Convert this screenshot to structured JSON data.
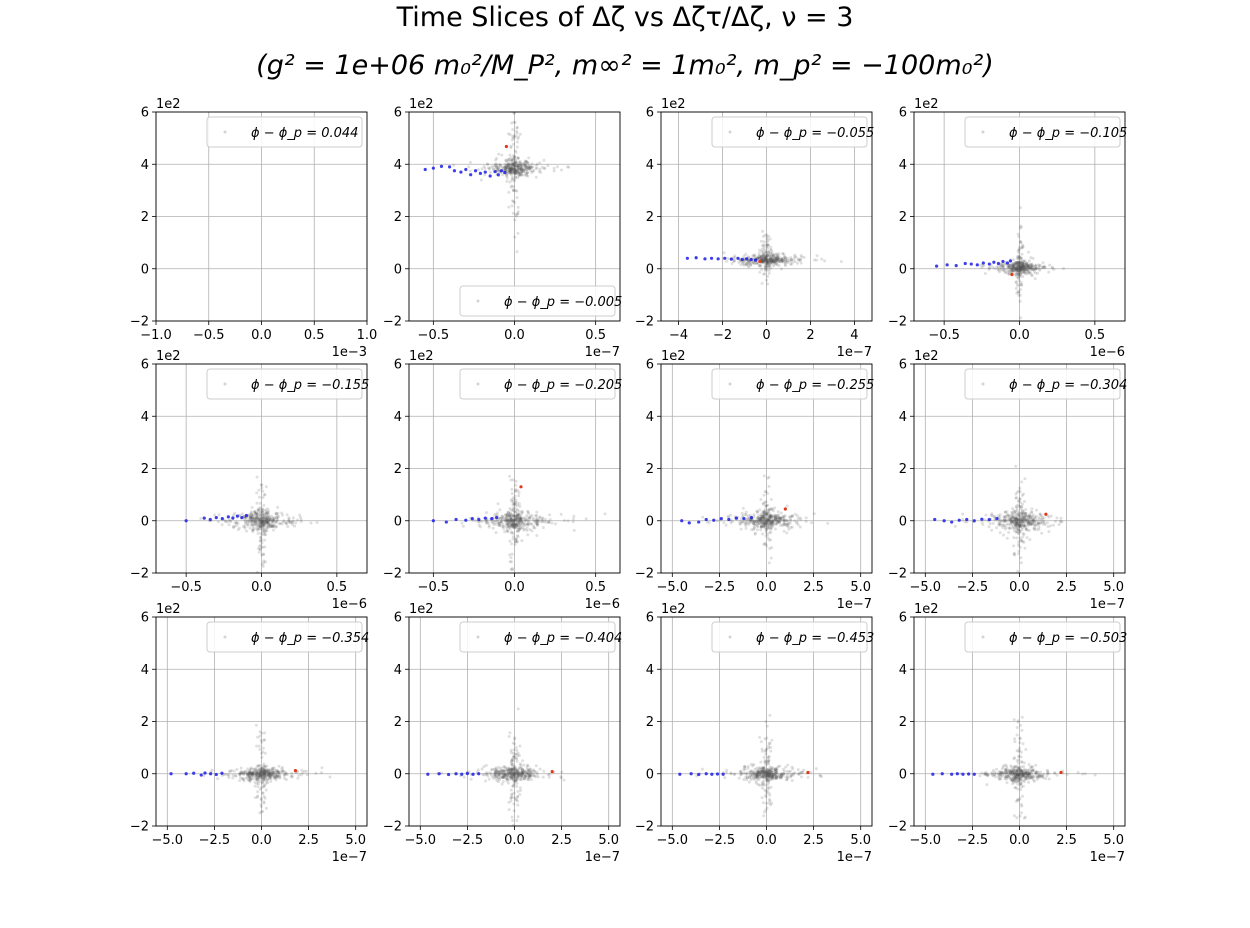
{
  "title_line1": "Time Slices of Δζ vs Δζτ/Δζ, ν = 3",
  "title_line2": "(g² = 1e+06 m₀²/M_P², m∞² = 1m₀², m_p² = −100m₀²)",
  "colors": {
    "grid": "#b0b0b0",
    "noise": "#555555",
    "blue": "#1f1fe6",
    "red": "#e03a1c",
    "legend_border": "#cccccc"
  },
  "chart_data": [
    {
      "type": "scatter",
      "legend": "ϕ − ϕ_p = 0.044",
      "legend_pos": "upper right",
      "xlim": [
        -1.0,
        1.0
      ],
      "xticks": [
        "−1.0",
        "−0.5",
        "0.0",
        "0.5",
        "1.0"
      ],
      "xticks_v": [
        -1.0,
        -0.5,
        0.0,
        0.5,
        1.0
      ],
      "xexp": "1e−3",
      "ylim": [
        -2,
        6
      ],
      "yticks": [
        "−2",
        "0",
        "2",
        "4",
        "6"
      ],
      "yticks_v": [
        -2,
        0,
        2,
        4,
        6
      ],
      "yexp": "1e2",
      "grid": true,
      "cloud": null
    },
    {
      "type": "scatter",
      "legend": "ϕ − ϕ_p = −0.005",
      "legend_pos": "lower right",
      "xlim": [
        -0.65,
        0.65
      ],
      "xticks": [
        "−0.5",
        "0.0",
        "0.5"
      ],
      "xticks_v": [
        -0.5,
        0.0,
        0.5
      ],
      "xexp": "1e−7",
      "ylim": [
        -2,
        6
      ],
      "yticks": [
        "−2",
        "0",
        "2",
        "4",
        "6"
      ],
      "yticks_v": [
        -2,
        0,
        2,
        4,
        6
      ],
      "yexp": "1e2",
      "grid": true,
      "cloud": {
        "y_center": 3.85,
        "x_spread": 0.06,
        "y_spread": 0.18,
        "y_vert": 1.3
      },
      "blue": [
        [
          -0.55,
          3.8
        ],
        [
          -0.5,
          3.85
        ],
        [
          -0.45,
          3.92
        ],
        [
          -0.4,
          3.9
        ],
        [
          -0.37,
          3.75
        ],
        [
          -0.33,
          3.7
        ],
        [
          -0.3,
          3.8
        ],
        [
          -0.27,
          3.6
        ],
        [
          -0.24,
          3.75
        ],
        [
          -0.21,
          3.65
        ],
        [
          -0.18,
          3.7
        ],
        [
          -0.15,
          3.55
        ],
        [
          -0.12,
          3.72
        ],
        [
          -0.1,
          3.6
        ],
        [
          -0.08,
          3.75
        ],
        [
          -0.06,
          3.68
        ]
      ],
      "red": [
        [
          -0.05,
          4.68
        ]
      ]
    },
    {
      "type": "scatter",
      "legend": "ϕ − ϕ_p = −0.055",
      "legend_pos": "upper right",
      "xlim": [
        -4.8,
        4.8
      ],
      "xticks": [
        "−4",
        "−2",
        "0",
        "2",
        "4"
      ],
      "xticks_v": [
        -4,
        -2,
        0,
        2,
        4
      ],
      "xexp": "1e−7",
      "ylim": [
        -2,
        6
      ],
      "yticks": [
        "−2",
        "0",
        "2",
        "4",
        "6"
      ],
      "yticks_v": [
        -2,
        0,
        2,
        4,
        6
      ],
      "yexp": "1e2",
      "grid": true,
      "cloud": {
        "y_center": 0.35,
        "x_spread": 0.5,
        "y_spread": 0.12,
        "y_vert": 0.5
      },
      "blue": [
        [
          -3.6,
          0.4
        ],
        [
          -3.2,
          0.42
        ],
        [
          -2.8,
          0.38
        ],
        [
          -2.5,
          0.4
        ],
        [
          -2.2,
          0.38
        ],
        [
          -1.9,
          0.4
        ],
        [
          -1.6,
          0.37
        ],
        [
          -1.3,
          0.4
        ],
        [
          -1.1,
          0.36
        ],
        [
          -0.9,
          0.38
        ],
        [
          -0.7,
          0.35
        ],
        [
          -0.5,
          0.33
        ]
      ],
      "red": [
        [
          -0.3,
          0.28
        ]
      ]
    },
    {
      "type": "scatter",
      "legend": "ϕ − ϕ_p = −0.105",
      "legend_pos": "upper right",
      "xlim": [
        -0.7,
        0.7
      ],
      "xticks": [
        "−0.5",
        "0.0",
        "0.5"
      ],
      "xticks_v": [
        -0.5,
        0.0,
        0.5
      ],
      "xexp": "1e−6",
      "ylim": [
        -2,
        6
      ],
      "yticks": [
        "−2",
        "0",
        "2",
        "4",
        "6"
      ],
      "yticks_v": [
        -2,
        0,
        2,
        4,
        6
      ],
      "yexp": "1e2",
      "grid": true,
      "cloud": {
        "y_center": 0.05,
        "x_spread": 0.05,
        "y_spread": 0.15,
        "y_vert": 0.6
      },
      "blue": [
        [
          -0.55,
          0.1
        ],
        [
          -0.48,
          0.15
        ],
        [
          -0.42,
          0.12
        ],
        [
          -0.36,
          0.2
        ],
        [
          -0.32,
          0.18
        ],
        [
          -0.28,
          0.15
        ],
        [
          -0.24,
          0.22
        ],
        [
          -0.2,
          0.18
        ],
        [
          -0.17,
          0.25
        ],
        [
          -0.14,
          0.2
        ],
        [
          -0.11,
          0.28
        ],
        [
          -0.08,
          0.22
        ],
        [
          -0.06,
          0.3
        ]
      ],
      "red": [
        [
          -0.05,
          -0.22
        ]
      ]
    },
    {
      "type": "scatter",
      "legend": "ϕ − ϕ_p = −0.155",
      "legend_pos": "upper right",
      "xlim": [
        -0.7,
        0.7
      ],
      "xticks": [
        "−0.5",
        "0.0",
        "0.5"
      ],
      "xticks_v": [
        -0.5,
        0.0,
        0.5
      ],
      "xexp": "1e−6",
      "ylim": [
        -2,
        6
      ],
      "yticks": [
        "−2",
        "0",
        "2",
        "4",
        "6"
      ],
      "yticks_v": [
        -2,
        0,
        2,
        4,
        6
      ],
      "yexp": "1e2",
      "grid": true,
      "cloud": {
        "y_center": 0.0,
        "x_spread": 0.07,
        "y_spread": 0.2,
        "y_vert": 0.9
      },
      "blue": [
        [
          -0.5,
          0.0
        ],
        [
          -0.38,
          0.1
        ],
        [
          -0.34,
          0.05
        ],
        [
          -0.3,
          0.12
        ],
        [
          -0.26,
          0.08
        ],
        [
          -0.22,
          0.15
        ],
        [
          -0.19,
          0.1
        ],
        [
          -0.16,
          0.18
        ],
        [
          -0.13,
          0.12
        ],
        [
          -0.1,
          0.2
        ]
      ],
      "red": []
    },
    {
      "type": "scatter",
      "legend": "ϕ − ϕ_p = −0.205",
      "legend_pos": "upper right",
      "xlim": [
        -0.65,
        0.65
      ],
      "xticks": [
        "−0.5",
        "0.0",
        "0.5"
      ],
      "xticks_v": [
        -0.5,
        0.0,
        0.5
      ],
      "xexp": "1e−6",
      "ylim": [
        -2,
        6
      ],
      "yticks": [
        "−2",
        "0",
        "2",
        "4",
        "6"
      ],
      "yticks_v": [
        -2,
        0,
        2,
        4,
        6
      ],
      "yexp": "1e2",
      "grid": true,
      "cloud": {
        "y_center": 0.0,
        "x_spread": 0.07,
        "y_spread": 0.2,
        "y_vert": 0.9
      },
      "blue": [
        [
          -0.5,
          0.0
        ],
        [
          -0.42,
          -0.05
        ],
        [
          -0.36,
          0.05
        ],
        [
          -0.3,
          0.02
        ],
        [
          -0.26,
          0.08
        ],
        [
          -0.22,
          0.05
        ],
        [
          -0.18,
          0.1
        ],
        [
          -0.14,
          0.08
        ],
        [
          -0.11,
          0.12
        ]
      ],
      "red": [
        [
          0.04,
          1.3
        ]
      ]
    },
    {
      "type": "scatter",
      "legend": "ϕ − ϕ_p = −0.255",
      "legend_pos": "upper right",
      "xlim": [
        -5.6,
        5.6
      ],
      "xticks": [
        "−5.0",
        "−2.5",
        "0.0",
        "2.5",
        "5.0"
      ],
      "xticks_v": [
        -5.0,
        -2.5,
        0.0,
        2.5,
        5.0
      ],
      "xexp": "1e−7",
      "ylim": [
        -2,
        6
      ],
      "yticks": [
        "−2",
        "0",
        "2",
        "4",
        "6"
      ],
      "yticks_v": [
        -2,
        0,
        2,
        4,
        6
      ],
      "yexp": "1e2",
      "grid": true,
      "cloud": {
        "y_center": 0.0,
        "x_spread": 0.6,
        "y_spread": 0.2,
        "y_vert": 0.9
      },
      "blue": [
        [
          -4.5,
          0.0
        ],
        [
          -4.1,
          -0.08
        ],
        [
          -3.6,
          -0.05
        ],
        [
          -3.2,
          0.05
        ],
        [
          -2.8,
          0.02
        ],
        [
          -2.4,
          0.08
        ],
        [
          -2.0,
          0.05
        ],
        [
          -1.6,
          0.1
        ],
        [
          -1.2,
          0.08
        ],
        [
          -0.8,
          0.12
        ]
      ],
      "red": [
        [
          1.0,
          0.45
        ]
      ]
    },
    {
      "type": "scatter",
      "legend": "ϕ − ϕ_p = −0.304",
      "legend_pos": "upper right",
      "xlim": [
        -5.6,
        5.6
      ],
      "xticks": [
        "−5.0",
        "−2.5",
        "0.0",
        "2.5",
        "5.0"
      ],
      "xticks_v": [
        -5.0,
        -2.5,
        0.0,
        2.5,
        5.0
      ],
      "xexp": "1e−7",
      "ylim": [
        -2,
        6
      ],
      "yticks": [
        "−2",
        "0",
        "2",
        "4",
        "6"
      ],
      "yticks_v": [
        -2,
        0,
        2,
        4,
        6
      ],
      "yexp": "1e2",
      "grid": true,
      "cloud": {
        "y_center": 0.0,
        "x_spread": 0.6,
        "y_spread": 0.2,
        "y_vert": 0.9
      },
      "blue": [
        [
          -4.5,
          0.05
        ],
        [
          -4.0,
          0.0
        ],
        [
          -3.6,
          -0.05
        ],
        [
          -3.2,
          0.02
        ],
        [
          -2.8,
          0.05
        ],
        [
          -2.4,
          0.0
        ],
        [
          -2.0,
          0.06
        ],
        [
          -1.6,
          0.05
        ],
        [
          -1.2,
          0.08
        ]
      ],
      "red": [
        [
          1.4,
          0.25
        ]
      ]
    },
    {
      "type": "scatter",
      "legend": "ϕ − ϕ_p = −0.354",
      "legend_pos": "upper right",
      "xlim": [
        -5.6,
        5.6
      ],
      "xticks": [
        "−5.0",
        "−2.5",
        "0.0",
        "2.5",
        "5.0"
      ],
      "xticks_v": [
        -5.0,
        -2.5,
        0.0,
        2.5,
        5.0
      ],
      "xexp": "1e−7",
      "ylim": [
        -2,
        6
      ],
      "yticks": [
        "−2",
        "0",
        "2",
        "4",
        "6"
      ],
      "yticks_v": [
        -2,
        0,
        2,
        4,
        6
      ],
      "yexp": "1e2",
      "grid": true,
      "cloud": {
        "y_center": 0.0,
        "x_spread": 0.6,
        "y_spread": 0.15,
        "y_vert": 0.9
      },
      "blue": [
        [
          -4.8,
          0.0
        ],
        [
          -4.0,
          0.0
        ],
        [
          -3.6,
          0.02
        ],
        [
          -3.2,
          -0.05
        ],
        [
          -3.0,
          0.03
        ],
        [
          -2.7,
          0.0
        ],
        [
          -2.4,
          -0.03
        ],
        [
          -2.1,
          0.02
        ]
      ],
      "red": [
        [
          1.8,
          0.12
        ]
      ]
    },
    {
      "type": "scatter",
      "legend": "ϕ − ϕ_p = −0.404",
      "legend_pos": "upper right",
      "xlim": [
        -5.6,
        5.6
      ],
      "xticks": [
        "−5.0",
        "−2.5",
        "0.0",
        "2.5",
        "5.0"
      ],
      "xticks_v": [
        -5.0,
        -2.5,
        0.0,
        2.5,
        5.0
      ],
      "xexp": "1e−7",
      "ylim": [
        -2,
        6
      ],
      "yticks": [
        "−2",
        "0",
        "2",
        "4",
        "6"
      ],
      "yticks_v": [
        -2,
        0,
        2,
        4,
        6
      ],
      "yexp": "1e2",
      "grid": true,
      "cloud": {
        "y_center": 0.0,
        "x_spread": 0.6,
        "y_spread": 0.15,
        "y_vert": 0.9
      },
      "blue": [
        [
          -4.6,
          -0.02
        ],
        [
          -4.0,
          0.0
        ],
        [
          -3.5,
          -0.03
        ],
        [
          -3.1,
          0.0
        ],
        [
          -2.8,
          -0.02
        ],
        [
          -2.5,
          0.01
        ],
        [
          -2.2,
          -0.02
        ],
        [
          -1.9,
          0.0
        ]
      ],
      "red": [
        [
          2.0,
          0.08
        ]
      ]
    },
    {
      "type": "scatter",
      "legend": "ϕ − ϕ_p = −0.453",
      "legend_pos": "upper right",
      "xlim": [
        -5.6,
        5.6
      ],
      "xticks": [
        "−5.0",
        "−2.5",
        "0.0",
        "2.5",
        "5.0"
      ],
      "xticks_v": [
        -5.0,
        -2.5,
        0.0,
        2.5,
        5.0
      ],
      "xexp": "1e−7",
      "ylim": [
        -2,
        6
      ],
      "yticks": [
        "−2",
        "0",
        "2",
        "4",
        "6"
      ],
      "yticks_v": [
        -2,
        0,
        2,
        4,
        6
      ],
      "yexp": "1e2",
      "grid": true,
      "cloud": {
        "y_center": 0.0,
        "x_spread": 0.6,
        "y_spread": 0.15,
        "y_vert": 0.9
      },
      "blue": [
        [
          -4.6,
          -0.02
        ],
        [
          -4.0,
          0.0
        ],
        [
          -3.6,
          -0.03
        ],
        [
          -3.2,
          0.0
        ],
        [
          -2.9,
          -0.02
        ],
        [
          -2.6,
          -0.01
        ],
        [
          -2.3,
          -0.02
        ]
      ],
      "red": [
        [
          2.2,
          0.05
        ]
      ]
    },
    {
      "type": "scatter",
      "legend": "ϕ − ϕ_p = −0.503",
      "legend_pos": "upper right",
      "xlim": [
        -5.6,
        5.6
      ],
      "xticks": [
        "−5.0",
        "−2.5",
        "0.0",
        "2.5",
        "5.0"
      ],
      "xticks_v": [
        -5.0,
        -2.5,
        0.0,
        2.5,
        5.0
      ],
      "xexp": "1e−7",
      "ylim": [
        -2,
        6
      ],
      "yticks": [
        "−2",
        "0",
        "2",
        "4",
        "6"
      ],
      "yticks_v": [
        -2,
        0,
        2,
        4,
        6
      ],
      "yexp": "1e2",
      "grid": true,
      "cloud": {
        "y_center": 0.0,
        "x_spread": 0.6,
        "y_spread": 0.15,
        "y_vert": 0.9
      },
      "blue": [
        [
          -4.6,
          -0.02
        ],
        [
          -4.1,
          0.0
        ],
        [
          -3.6,
          -0.02
        ],
        [
          -3.3,
          0.0
        ],
        [
          -3.0,
          -0.02
        ],
        [
          -2.7,
          -0.01
        ],
        [
          -2.4,
          -0.02
        ]
      ],
      "red": [
        [
          2.2,
          0.05
        ]
      ]
    }
  ]
}
